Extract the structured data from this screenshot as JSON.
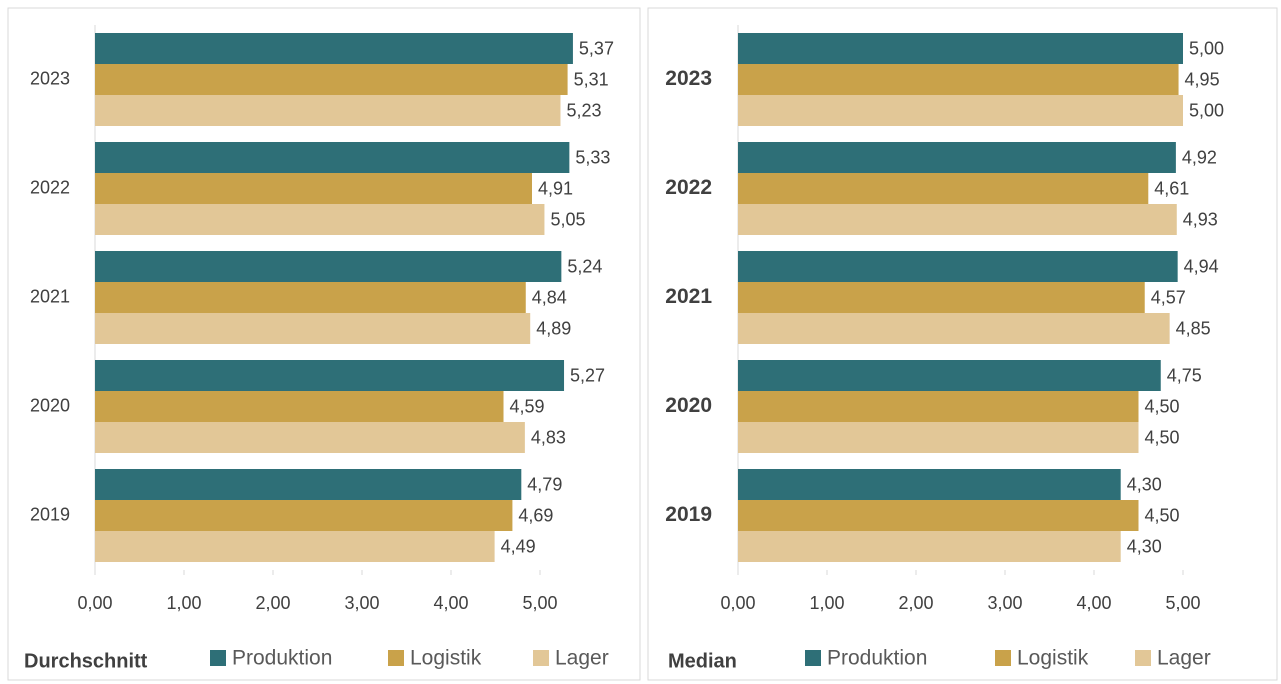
{
  "chart_data": [
    {
      "type": "bar",
      "orientation": "horizontal",
      "title": "Durchschnitt",
      "categories": [
        "2023",
        "2022",
        "2021",
        "2020",
        "2019"
      ],
      "series": [
        {
          "name": "Produktion",
          "color": "#2e6f77",
          "values": [
            5.37,
            5.33,
            5.24,
            5.27,
            4.79
          ],
          "value_labels": [
            "5,37",
            "5,33",
            "5,24",
            "5,27",
            "4,79"
          ]
        },
        {
          "name": "Logistik",
          "color": "#c9a24a",
          "values": [
            5.31,
            4.91,
            4.84,
            4.59,
            4.69
          ],
          "value_labels": [
            "5,31",
            "4,91",
            "4,84",
            "4,59",
            "4,69"
          ]
        },
        {
          "name": "Lager",
          "color": "#e2c797",
          "values": [
            5.23,
            5.05,
            4.89,
            4.83,
            4.49
          ],
          "value_labels": [
            "5,23",
            "5,05",
            "4,89",
            "4,83",
            "4,49"
          ]
        }
      ],
      "xlim": [
        0,
        6
      ],
      "xticks": [
        {
          "value": 0,
          "label": "0,00"
        },
        {
          "value": 1,
          "label": "1,00"
        },
        {
          "value": 2,
          "label": "2,00"
        },
        {
          "value": 3,
          "label": "3,00"
        },
        {
          "value": 4,
          "label": "4,00"
        },
        {
          "value": 5,
          "label": "5,00"
        }
      ],
      "legend": "bottom"
    },
    {
      "type": "bar",
      "orientation": "horizontal",
      "title": "Median",
      "categories": [
        "2023",
        "2022",
        "2021",
        "2020",
        "2019"
      ],
      "series": [
        {
          "name": "Produktion",
          "color": "#2e6f77",
          "values": [
            5.0,
            4.92,
            4.94,
            4.75,
            4.3
          ],
          "value_labels": [
            "5,00",
            "4,92",
            "4,94",
            "4,75",
            "4,30"
          ]
        },
        {
          "name": "Logistik",
          "color": "#c9a24a",
          "values": [
            4.95,
            4.61,
            4.57,
            4.5,
            4.5
          ],
          "value_labels": [
            "4,95",
            "4,61",
            "4,57",
            "4,50",
            "4,50"
          ]
        },
        {
          "name": "Lager",
          "color": "#e2c797",
          "values": [
            5.0,
            4.93,
            4.85,
            4.5,
            4.3
          ],
          "value_labels": [
            "5,00",
            "4,93",
            "4,85",
            "4,50",
            "4,30"
          ]
        }
      ],
      "xlim": [
        0,
        6
      ],
      "xticks": [
        {
          "value": 0,
          "label": "0,00"
        },
        {
          "value": 1,
          "label": "1,00"
        },
        {
          "value": 2,
          "label": "2,00"
        },
        {
          "value": 3,
          "label": "3,00"
        },
        {
          "value": 4,
          "label": "4,00"
        },
        {
          "value": 5,
          "label": "5,00"
        }
      ],
      "legend": "bottom"
    }
  ]
}
